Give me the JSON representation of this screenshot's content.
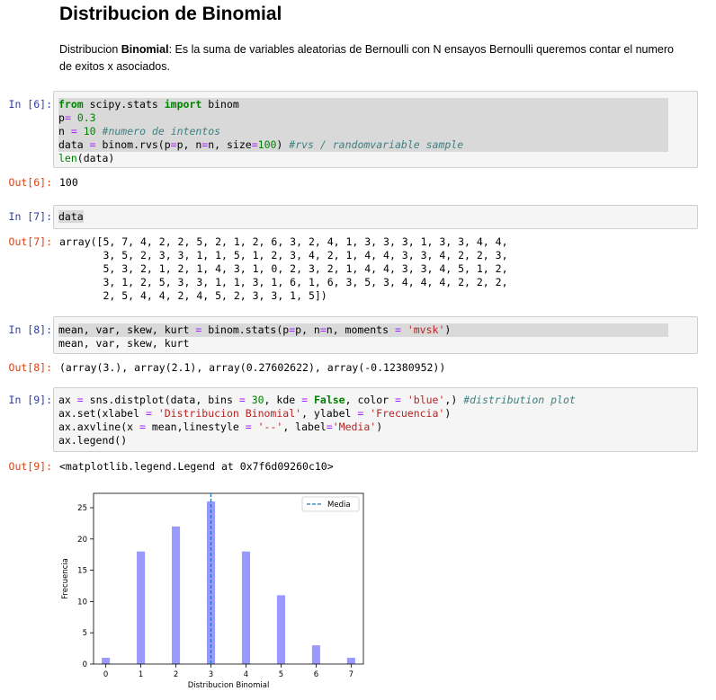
{
  "heading": "Distribucion de Binomial",
  "intro": {
    "bold_term": "Binomial",
    "prefix": "Distribucion ",
    "rest": ": Es la suma de variables aleatorias de Bernoulli con N ensayos Bernoulli queremos contar el numero de exitos x asociados."
  },
  "cells": {
    "c6": {
      "in_prompt": "In [6]:",
      "out_prompt": "Out[6]:",
      "lines": [
        [
          {
            "t": "from",
            "c": "kw"
          },
          {
            "t": " scipy.stats ",
            "c": ""
          },
          {
            "t": "import",
            "c": "kw"
          },
          {
            "t": " binom",
            "c": ""
          }
        ],
        [
          {
            "t": "p",
            "c": ""
          },
          {
            "t": "=",
            "c": "op"
          },
          {
            "t": " ",
            "c": ""
          },
          {
            "t": "0.3",
            "c": "nm"
          }
        ],
        [
          {
            "t": "n ",
            "c": ""
          },
          {
            "t": "=",
            "c": "op"
          },
          {
            "t": " ",
            "c": ""
          },
          {
            "t": "10",
            "c": "nm"
          },
          {
            "t": " ",
            "c": ""
          },
          {
            "t": "#numero de intentos",
            "c": "cm"
          }
        ],
        [
          {
            "t": "data ",
            "c": ""
          },
          {
            "t": "=",
            "c": "op"
          },
          {
            "t": " binom.rvs(p",
            "c": ""
          },
          {
            "t": "=",
            "c": "op"
          },
          {
            "t": "p, n",
            "c": ""
          },
          {
            "t": "=",
            "c": "op"
          },
          {
            "t": "n, size",
            "c": ""
          },
          {
            "t": "=",
            "c": "op"
          },
          {
            "t": "100",
            "c": "nm"
          },
          {
            "t": ") ",
            "c": ""
          },
          {
            "t": "#rvs / randomvariable sample",
            "c": "cm"
          }
        ],
        [
          {
            "t": "len",
            "c": "nm"
          },
          {
            "t": "(data)",
            "c": ""
          }
        ]
      ],
      "output": "100"
    },
    "c7": {
      "in_prompt": "In [7]:",
      "out_prompt": "Out[7]:",
      "code": "data",
      "output": "array([5, 7, 4, 2, 2, 5, 2, 1, 2, 6, 3, 2, 4, 1, 3, 3, 3, 1, 3, 3, 4, 4,\n       3, 5, 2, 3, 3, 1, 1, 5, 1, 2, 3, 4, 2, 1, 4, 4, 3, 3, 4, 2, 2, 3,\n       5, 3, 2, 1, 2, 1, 4, 3, 1, 0, 2, 3, 2, 1, 4, 4, 3, 3, 4, 5, 1, 2,\n       3, 1, 2, 5, 3, 3, 1, 1, 3, 1, 6, 1, 6, 3, 5, 3, 4, 4, 4, 2, 2, 2,\n       2, 5, 4, 4, 2, 4, 5, 2, 3, 3, 1, 5])"
    },
    "c8": {
      "in_prompt": "In [8]:",
      "out_prompt": "Out[8]:",
      "lines": [
        [
          {
            "t": "mean, var, skew, kurt ",
            "c": ""
          },
          {
            "t": "=",
            "c": "op"
          },
          {
            "t": " binom.stats(p",
            "c": ""
          },
          {
            "t": "=",
            "c": "op"
          },
          {
            "t": "p, n",
            "c": ""
          },
          {
            "t": "=",
            "c": "op"
          },
          {
            "t": "n, moments ",
            "c": ""
          },
          {
            "t": "=",
            "c": "op"
          },
          {
            "t": " ",
            "c": ""
          },
          {
            "t": "'mvsk'",
            "c": "st"
          },
          {
            "t": ")",
            "c": ""
          }
        ],
        [
          {
            "t": "mean, var, skew, kurt",
            "c": ""
          }
        ]
      ],
      "output": "(array(3.), array(2.1), array(0.27602622), array(-0.12380952))"
    },
    "c9": {
      "in_prompt": "In [9]:",
      "out_prompt": "Out[9]:",
      "lines": [
        [
          {
            "t": "ax ",
            "c": ""
          },
          {
            "t": "=",
            "c": "op"
          },
          {
            "t": " sns.distplot(data, bins ",
            "c": ""
          },
          {
            "t": "=",
            "c": "op"
          },
          {
            "t": " ",
            "c": ""
          },
          {
            "t": "30",
            "c": "nm"
          },
          {
            "t": ", kde ",
            "c": ""
          },
          {
            "t": "=",
            "c": "op"
          },
          {
            "t": " ",
            "c": ""
          },
          {
            "t": "False",
            "c": "kw"
          },
          {
            "t": ", color ",
            "c": ""
          },
          {
            "t": "=",
            "c": "op"
          },
          {
            "t": " ",
            "c": ""
          },
          {
            "t": "'blue'",
            "c": "st"
          },
          {
            "t": ",) ",
            "c": ""
          },
          {
            "t": "#distribution plot",
            "c": "cm"
          }
        ],
        [
          {
            "t": "ax.set(xlabel ",
            "c": ""
          },
          {
            "t": "=",
            "c": "op"
          },
          {
            "t": " ",
            "c": ""
          },
          {
            "t": "'Distribucion Binomial'",
            "c": "st"
          },
          {
            "t": ", ylabel ",
            "c": ""
          },
          {
            "t": "=",
            "c": "op"
          },
          {
            "t": " ",
            "c": ""
          },
          {
            "t": "'Frecuencia'",
            "c": "st"
          },
          {
            "t": ")",
            "c": ""
          }
        ],
        [
          {
            "t": "ax.axvline(x ",
            "c": ""
          },
          {
            "t": "=",
            "c": "op"
          },
          {
            "t": " mean,linestyle ",
            "c": ""
          },
          {
            "t": "=",
            "c": "op"
          },
          {
            "t": " ",
            "c": ""
          },
          {
            "t": "'--'",
            "c": "st"
          },
          {
            "t": ", label",
            "c": ""
          },
          {
            "t": "=",
            "c": "op"
          },
          {
            "t": "'Media'",
            "c": "st"
          },
          {
            "t": ")",
            "c": ""
          }
        ],
        [
          {
            "t": "ax.legend()",
            "c": ""
          }
        ]
      ],
      "output": "<matplotlib.legend.Legend at 0x7f6d09260c10>"
    }
  },
  "chart_data": {
    "type": "bar",
    "categories": [
      0,
      1,
      2,
      3,
      4,
      5,
      6,
      7
    ],
    "values": [
      1,
      18,
      22,
      26,
      18,
      11,
      3,
      1
    ],
    "bar_color": "#9999ff",
    "mean_line_color": "#1f77b4",
    "mean": 3,
    "xlabel": "Distribucion Binomial",
    "ylabel": "Frecuencia",
    "xticks": [
      "0",
      "1",
      "2",
      "3",
      "4",
      "5",
      "6",
      "7"
    ],
    "yticks": [
      "0",
      "5",
      "10",
      "15",
      "20",
      "25"
    ],
    "ylim": [
      0,
      27.3
    ],
    "xlim": [
      -0.35,
      7.35
    ],
    "legend": {
      "label": "Media",
      "placement": "top-right"
    }
  }
}
